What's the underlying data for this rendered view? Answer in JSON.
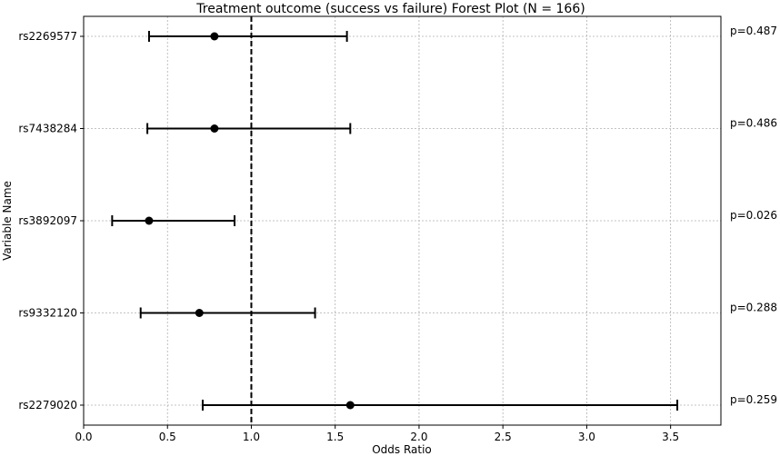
{
  "chart_data": {
    "type": "forest",
    "title": "Treatment outcome (success vs failure) Forest Plot (N = 166)",
    "xlabel": "Odds Ratio",
    "ylabel": "Variable Name",
    "xlim": [
      0.0,
      3.8
    ],
    "xticks": [
      "0.0",
      "0.5",
      "1.0",
      "1.5",
      "2.0",
      "2.5",
      "3.0",
      "3.5"
    ],
    "reference_line": 1.0,
    "grid": true,
    "rows": [
      {
        "label": "rs2269577",
        "or": 0.78,
        "ci_low": 0.39,
        "ci_high": 1.57,
        "p_label": "p=0.487"
      },
      {
        "label": "rs7438284",
        "or": 0.78,
        "ci_low": 0.38,
        "ci_high": 1.59,
        "p_label": "p=0.486"
      },
      {
        "label": "rs3892097",
        "or": 0.39,
        "ci_low": 0.17,
        "ci_high": 0.9,
        "p_label": "p=0.026"
      },
      {
        "label": "rs9332120",
        "or": 0.69,
        "ci_low": 0.34,
        "ci_high": 1.38,
        "p_label": "p=0.288"
      },
      {
        "label": "rs2279020",
        "or": 1.59,
        "ci_low": 0.71,
        "ci_high": 3.54,
        "p_label": "p=0.259"
      }
    ]
  }
}
